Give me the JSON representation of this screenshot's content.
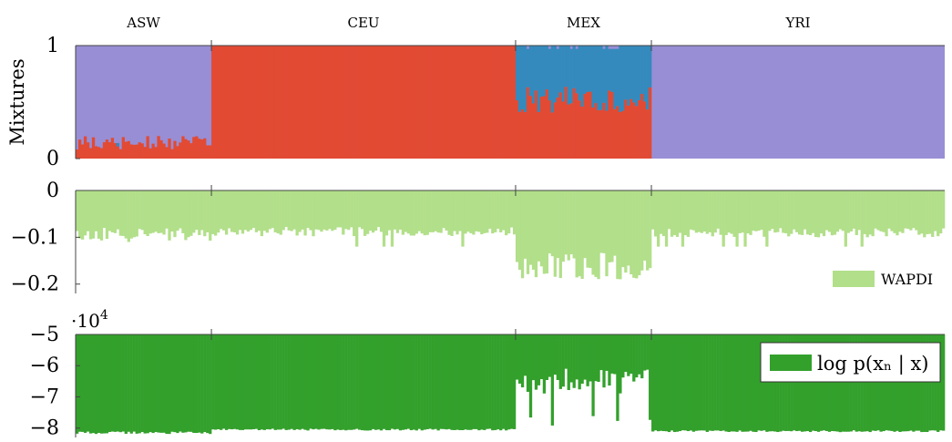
{
  "chart_data": [
    {
      "type": "bar",
      "subtype": "stacked-admixture",
      "ylabel": "Mixtures",
      "ylim": [
        0,
        1
      ],
      "yticks": [
        0,
        1
      ],
      "groups": [
        {
          "label": "ASW",
          "count": 50
        },
        {
          "label": "CEU",
          "count": 112
        },
        {
          "label": "MEX",
          "count": 50
        },
        {
          "label": "YRI",
          "count": 108
        }
      ],
      "components": [
        {
          "color": "#e24a33"
        },
        {
          "color": "#348abd"
        },
        {
          "color": "#988ed5"
        }
      ],
      "series_red_by_group": {
        "ASW": {
          "mean": 0.14,
          "spread": 0.06
        },
        "CEU": {
          "mean": 1.0,
          "spread": 0.0
        },
        "MEX": {
          "mean": 0.52,
          "spread": 0.12
        },
        "YRI": {
          "mean": 0.0,
          "spread": 0.0
        }
      },
      "series_blue_by_group": {
        "ASW": {
          "mean": 0.0,
          "spread": 0.0
        },
        "CEU": {
          "mean": 0.0,
          "spread": 0.0
        },
        "MEX": {
          "mean": 0.45,
          "spread": 0.1
        },
        "YRI": {
          "mean": 0.0,
          "spread": 0.0
        }
      }
    },
    {
      "type": "bar",
      "ylim": [
        -0.22,
        0.0
      ],
      "yticks": [
        0,
        -0.1,
        -0.2
      ],
      "ytick_labels": [
        "0",
        "−0.1",
        "−0.2"
      ],
      "legend": {
        "label": "WAPDI",
        "color": "#b2df8a",
        "position": "right"
      },
      "values_by_group": {
        "ASW": {
          "mean": -0.095,
          "spread": 0.015,
          "min": -0.16
        },
        "CEU": {
          "mean": -0.088,
          "spread": 0.01,
          "min": -0.12
        },
        "MEX": {
          "mean": -0.16,
          "spread": 0.03,
          "min": -0.21
        },
        "YRI": {
          "mean": -0.09,
          "spread": 0.01,
          "min": -0.12
        }
      }
    },
    {
      "type": "bar",
      "ylim": [
        -8.3,
        -5
      ],
      "yticks": [
        -5,
        -6,
        -7,
        -8
      ],
      "ytick_labels": [
        "−5",
        "−6",
        "−7",
        "−8"
      ],
      "scale_label": "·10",
      "scale_exponent": "4",
      "legend": {
        "label": "log p(xₙ | x)",
        "color": "#33a02c",
        "position": "top-right"
      },
      "values_by_group": {
        "ASW": {
          "mean": -8.15,
          "spread": 0.04
        },
        "CEU": {
          "mean": -8.05,
          "spread": 0.03
        },
        "MEX": {
          "mean": -6.5,
          "spread": 0.4
        },
        "YRI": {
          "mean": -8.1,
          "spread": 0.03
        }
      }
    }
  ]
}
